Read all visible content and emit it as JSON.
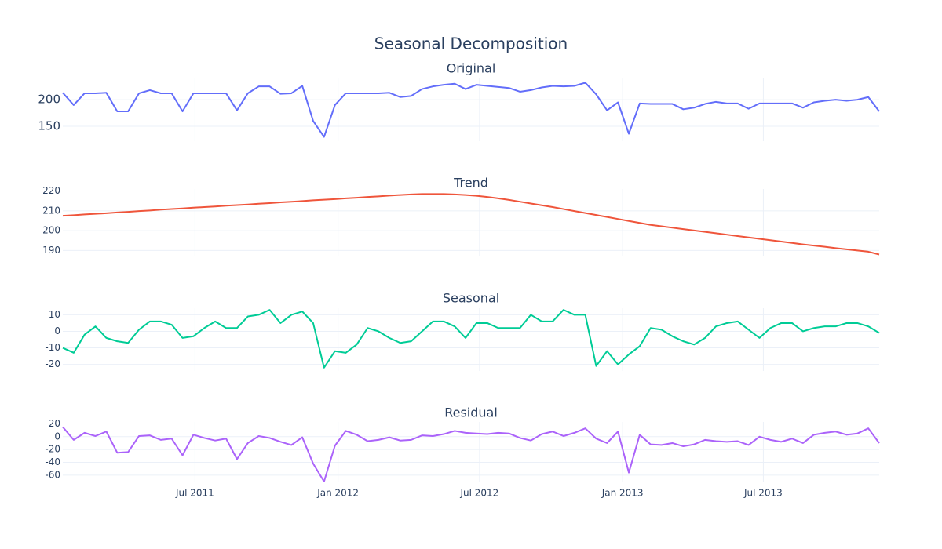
{
  "chart_data": {
    "type": "line",
    "title": "Seasonal Decomposition",
    "x": [
      "2011-01-12",
      "2011-01-26",
      "2011-02-09",
      "2011-02-23",
      "2011-03-09",
      "2011-03-23",
      "2011-04-06",
      "2011-04-20",
      "2011-05-04",
      "2011-05-18",
      "2011-06-01",
      "2011-06-15",
      "2011-06-29",
      "2011-07-13",
      "2011-07-27",
      "2011-08-10",
      "2011-08-24",
      "2011-09-07",
      "2011-09-21",
      "2011-10-05",
      "2011-10-19",
      "2011-11-02",
      "2011-11-16",
      "2011-11-30",
      "2011-12-14",
      "2011-12-28",
      "2012-01-11",
      "2012-01-25",
      "2012-02-08",
      "2012-02-22",
      "2012-03-07",
      "2012-03-21",
      "2012-04-04",
      "2012-04-18",
      "2012-05-02",
      "2012-05-16",
      "2012-05-30",
      "2012-06-13",
      "2012-06-27",
      "2012-07-11",
      "2012-07-25",
      "2012-08-08",
      "2012-08-22",
      "2012-09-05",
      "2012-09-19",
      "2012-10-03",
      "2012-10-17",
      "2012-10-31",
      "2012-11-14",
      "2012-11-28",
      "2012-12-12",
      "2012-12-26",
      "2013-01-09",
      "2013-01-23",
      "2013-02-06",
      "2013-02-20",
      "2013-03-06",
      "2013-03-20",
      "2013-04-03",
      "2013-04-17",
      "2013-05-01",
      "2013-05-15",
      "2013-05-29",
      "2013-06-12",
      "2013-06-26",
      "2013-07-10",
      "2013-07-24",
      "2013-08-07",
      "2013-08-21",
      "2013-09-04",
      "2013-09-18",
      "2013-10-02",
      "2013-10-16",
      "2013-10-30",
      "2013-11-13",
      "2013-11-27"
    ],
    "xlim": [
      "2011-01-12",
      "2013-11-27"
    ],
    "xticks": [
      {
        "value": "2011-07-01",
        "label": "Jul 2011"
      },
      {
        "value": "2012-01-01",
        "label": "Jan 2012"
      },
      {
        "value": "2012-07-01",
        "label": "Jul 2012"
      },
      {
        "value": "2013-01-01",
        "label": "Jan 2013"
      },
      {
        "value": "2013-07-01",
        "label": "Jul 2013"
      }
    ],
    "grid": true,
    "subplots": [
      {
        "title": "Original",
        "color": "#636efa",
        "ylim": [
          122,
          240
        ],
        "yticks": [
          150,
          200
        ],
        "values": [
          213,
          190,
          212,
          212,
          213,
          178,
          178,
          212,
          218,
          212,
          212,
          178,
          212,
          212,
          212,
          212,
          180,
          212,
          225,
          225,
          211,
          212,
          226,
          160,
          130,
          190,
          212,
          212,
          212,
          212,
          213,
          205,
          207,
          220,
          225,
          228,
          230,
          220,
          228,
          226,
          224,
          222,
          215,
          218,
          223,
          226,
          225,
          226,
          232,
          210,
          180,
          195,
          136,
          193,
          192,
          192,
          192,
          182,
          185,
          192,
          196,
          193,
          193,
          183,
          193,
          193,
          193,
          193,
          185,
          195,
          198,
          200,
          198,
          200,
          205,
          178
        ]
      },
      {
        "title": "Trend",
        "color": "#ef553b",
        "ylim": [
          187,
          221
        ],
        "yticks": [
          190,
          200,
          210,
          220
        ],
        "values": [
          207.5,
          207.8,
          208.2,
          208.5,
          208.8,
          209.2,
          209.5,
          209.9,
          210.2,
          210.6,
          210.9,
          211.2,
          211.6,
          211.9,
          212.2,
          212.6,
          212.9,
          213.2,
          213.6,
          213.9,
          214.3,
          214.6,
          214.9,
          215.3,
          215.6,
          215.9,
          216.3,
          216.6,
          217.0,
          217.3,
          217.7,
          218.0,
          218.3,
          218.5,
          218.5,
          218.5,
          218.3,
          218.0,
          217.6,
          217.0,
          216.3,
          215.5,
          214.6,
          213.7,
          212.8,
          211.9,
          210.9,
          209.9,
          208.9,
          207.9,
          206.9,
          205.9,
          204.9,
          203.9,
          202.9,
          202.2,
          201.5,
          200.8,
          200.1,
          199.4,
          198.7,
          198.0,
          197.3,
          196.6,
          195.9,
          195.2,
          194.5,
          193.8,
          193.1,
          192.5,
          191.9,
          191.2,
          190.6,
          190.0,
          189.4,
          188.0
        ]
      },
      {
        "title": "Seasonal",
        "color": "#00cc96",
        "ylim": [
          -24,
          14
        ],
        "yticks": [
          -20,
          -10,
          0,
          10
        ],
        "values": [
          -10,
          -13,
          -2,
          3,
          -4,
          -6,
          -7,
          1,
          6,
          6,
          4,
          -4,
          -3,
          2,
          6,
          2,
          2,
          9,
          10,
          13,
          5,
          10,
          12,
          5,
          -22,
          -12,
          -13,
          -8,
          2,
          0,
          -4,
          -7,
          -6,
          0,
          6,
          6,
          3,
          -4,
          5,
          5,
          2,
          2,
          2,
          10,
          6,
          6,
          13,
          10,
          10,
          -21,
          -12,
          -20,
          -14,
          -9,
          2,
          1,
          -3,
          -6,
          -8,
          -4,
          3,
          5,
          6,
          1,
          -4,
          2,
          5,
          5,
          0,
          2,
          3,
          3,
          5,
          5,
          3,
          -1
        ]
      },
      {
        "title": "Residual",
        "color": "#ab63fa",
        "ylim": [
          -70,
          23
        ],
        "yticks": [
          -60,
          -40,
          -20,
          0,
          20
        ],
        "values": [
          15,
          -5,
          6,
          1,
          8,
          -25,
          -24,
          1,
          2,
          -5,
          -3,
          -29,
          3,
          -2,
          -6,
          -3,
          -35,
          -10,
          1,
          -2,
          -8,
          -13,
          -1,
          -42,
          -70,
          -14,
          9,
          3,
          -7,
          -5,
          -1,
          -6,
          -5,
          2,
          1,
          4,
          9,
          6,
          5,
          4,
          6,
          5,
          -2,
          -6,
          4,
          8,
          1,
          6,
          13,
          -3,
          -10,
          8,
          -56,
          3,
          -12,
          -13,
          -10,
          -15,
          -12,
          -5,
          -7,
          -8,
          -7,
          -13,
          0,
          -5,
          -8,
          -3,
          -10,
          3,
          6,
          8,
          3,
          5,
          13,
          -10
        ]
      }
    ]
  }
}
